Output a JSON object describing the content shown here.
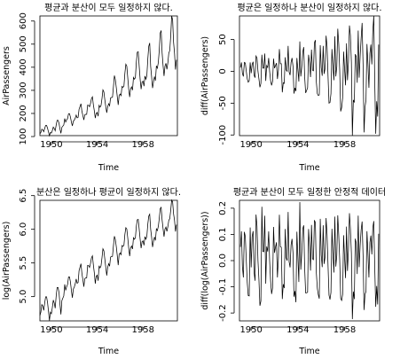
{
  "chart_data": [
    {
      "type": "line",
      "title": "평균과 분산이 모두 일정하지 않다.",
      "xlabel": "Time",
      "ylabel": "AirPassengers",
      "xlim": [
        1949,
        1961
      ],
      "ylim": [
        104,
        622
      ],
      "xticks": [
        1950,
        1954,
        1958
      ],
      "yticks": [
        100,
        200,
        300,
        400,
        500,
        600
      ],
      "series": [
        {
          "start_year": 1949,
          "frequency": 12,
          "values": [
            112,
            118,
            132,
            129,
            121,
            135,
            148,
            148,
            136,
            119,
            104,
            118,
            115,
            126,
            141,
            135,
            125,
            149,
            170,
            170,
            158,
            133,
            114,
            140,
            145,
            150,
            178,
            163,
            172,
            178,
            199,
            199,
            184,
            162,
            146,
            166,
            171,
            180,
            193,
            181,
            183,
            218,
            230,
            242,
            209,
            191,
            172,
            194,
            196,
            196,
            236,
            235,
            229,
            243,
            264,
            272,
            237,
            211,
            180,
            201,
            204,
            188,
            235,
            227,
            234,
            264,
            302,
            293,
            259,
            229,
            203,
            229,
            242,
            233,
            267,
            269,
            270,
            315,
            364,
            347,
            312,
            274,
            237,
            278,
            284,
            277,
            317,
            313,
            318,
            374,
            413,
            405,
            355,
            306,
            271,
            306,
            315,
            301,
            356,
            348,
            355,
            422,
            465,
            467,
            404,
            347,
            305,
            336,
            340,
            318,
            362,
            348,
            363,
            435,
            491,
            505,
            404,
            359,
            310,
            337,
            360,
            342,
            406,
            396,
            420,
            472,
            548,
            559,
            463,
            407,
            362,
            405,
            417,
            391,
            419,
            461,
            472,
            535,
            622,
            606,
            508,
            461,
            390,
            432
          ]
        }
      ]
    },
    {
      "type": "line",
      "title": "평균은 일정하나 분산이 일정하지 않다.",
      "xlabel": "Time",
      "ylabel": "diff(AirPassengers)",
      "xlim": [
        1949,
        1961
      ],
      "ylim": [
        -101,
        87
      ],
      "xticks": [
        1950,
        1954,
        1958
      ],
      "yticks": [
        -100,
        -50,
        0,
        50
      ],
      "series": [
        {
          "start_year": 1949.0833,
          "frequency": 12,
          "transform": "diff of chart 1 series"
        }
      ]
    },
    {
      "type": "line",
      "title": "분산은 일정하나 평균이 일정하지 않다.",
      "xlabel": "Time",
      "ylabel": "log(AirPassengers)",
      "xlim": [
        1949,
        1961
      ],
      "ylim": [
        4.64,
        6.43
      ],
      "xticks": [
        1950,
        1954,
        1958
      ],
      "yticks": [
        5.0,
        5.5,
        6.0,
        6.5
      ],
      "ytick_labels": [
        "5.0",
        "5.5",
        "6.0",
        "6.5"
      ],
      "series": [
        {
          "start_year": 1949,
          "frequency": 12,
          "transform": "natural log of chart 1 series"
        }
      ]
    },
    {
      "type": "line",
      "title": "평균과 분산이 모두 일정한 안정적 데이터",
      "xlabel": "Time",
      "ylabel": "diff(log(AirPassengers))",
      "xlim": [
        1949,
        1961
      ],
      "ylim": [
        -0.23,
        0.23
      ],
      "xticks": [
        1950,
        1954,
        1958
      ],
      "yticks": [
        -0.2,
        -0.1,
        0.0,
        0.1,
        0.2
      ],
      "ytick_labels": [
        "-0.2",
        "-0.1",
        "0.0",
        "0.1",
        "0.2"
      ],
      "series": [
        {
          "start_year": 1949.0833,
          "frequency": 12,
          "transform": "diff of natural log of chart 1 series"
        }
      ]
    }
  ]
}
